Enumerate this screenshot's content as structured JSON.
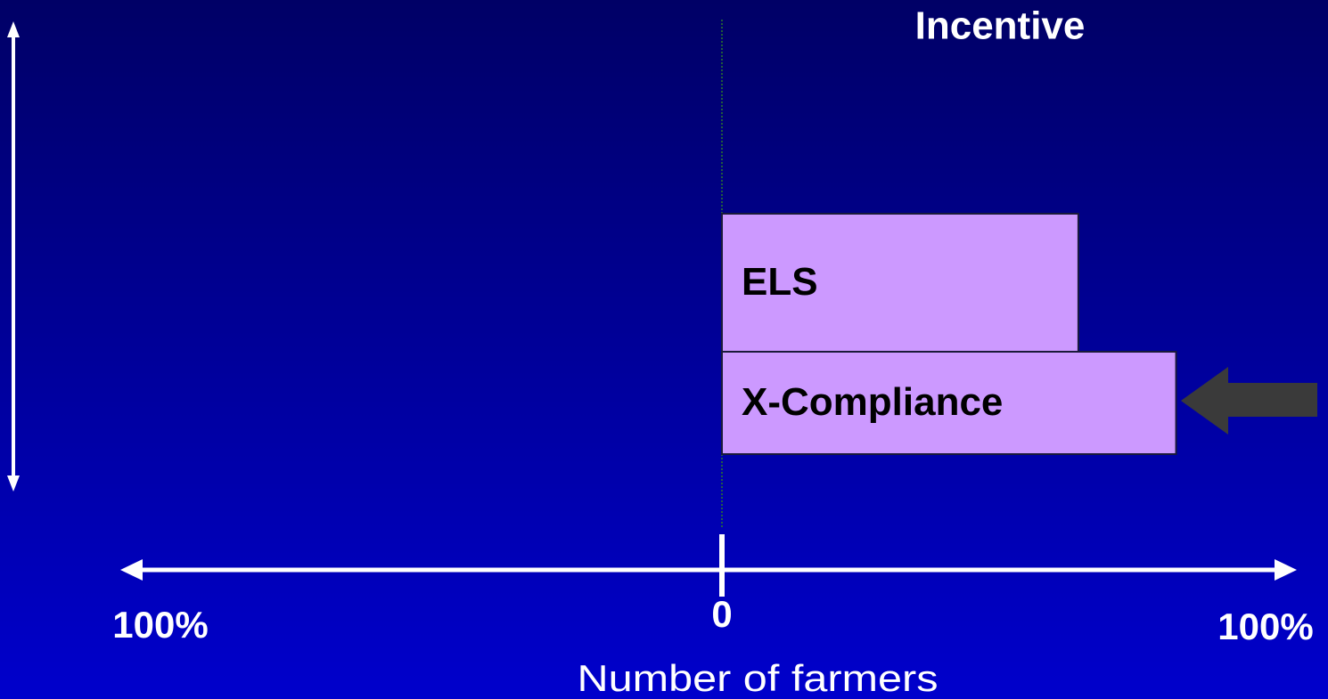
{
  "chart_data": {
    "type": "bar",
    "orientation": "horizontal",
    "title": "Incentive",
    "categories": [
      "ELS",
      "X-Compliance"
    ],
    "values": [
      62,
      79
    ],
    "color": "#cc99ff",
    "xlabel": "Number of farmers",
    "xlim": [
      -100,
      100
    ],
    "xticks": [
      {
        "value": -100,
        "label": "100%"
      },
      0,
      {
        "value": 100,
        "label": "100%"
      }
    ]
  }
}
